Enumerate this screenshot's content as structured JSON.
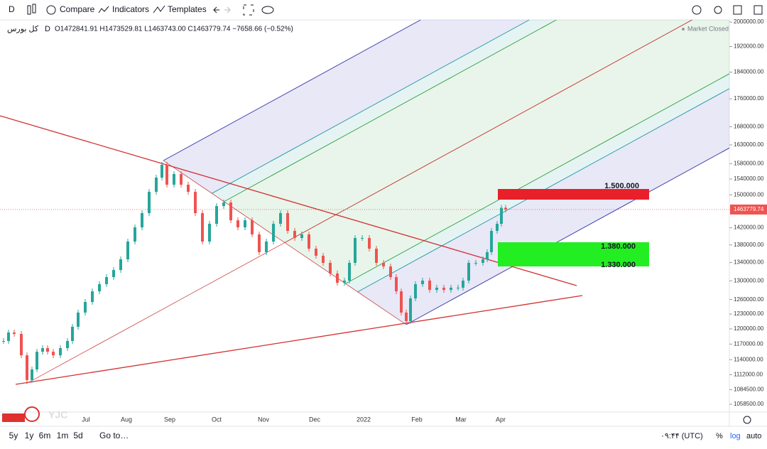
{
  "toolbar": {
    "interval": "D",
    "compare": "Compare",
    "indicators": "Indicators",
    "templates": "Templates"
  },
  "header": {
    "symbol": "کل بورس",
    "interval": "D",
    "ohlc": "O1472841.91 H1473529.81 L1463743.00 C1463779.74 −7658.66 (−0.52%)",
    "status": "Market Closed"
  },
  "chart": {
    "type": "candlestick",
    "log_scale": true,
    "closes": [
      1176000,
      1192800,
      1190000,
      1148400,
      1102000,
      1121600,
      1155200,
      1162200,
      1155200,
      1148400,
      1162200,
      1176000,
      1204200,
      1233000,
      1255000,
      1277400,
      1292800,
      1308000,
      1323600,
      1347400,
      1387800,
      1421000,
      1455000,
      1507600,
      1543600,
      1577000,
      1525600,
      1552800,
      1525600,
      1507600,
      1455000,
      1387800,
      1429400,
      1472200,
      1481000,
      1437800,
      1421000,
      1437800,
      1404400,
      1363400,
      1387800,
      1429400,
      1455000,
      1412600,
      1396000,
      1404400,
      1371400,
      1355400,
      1339400,
      1315800,
      1295800,
      1300400,
      1339400,
      1396000,
      1396000,
      1371400,
      1339400,
      1331400,
      1308000,
      1277400,
      1233000,
      1215600,
      1262400,
      1292800,
      1300400,
      1280400,
      1285200,
      1280400,
      1285200,
      1285200,
      1300400,
      1339400,
      1339400,
      1347400,
      1363400,
      1412600,
      1429400,
      1468000,
      1463779.74
    ],
    "current_price": 1463779.74,
    "ylim": [
      1047300,
      2007100
    ],
    "yticks": [
      {
        "value": 2000000,
        "label": "2000000.00"
      },
      {
        "value": 1920000,
        "label": "1920000.00"
      },
      {
        "value": 1840000,
        "label": "1840000.00"
      },
      {
        "value": 1760000,
        "label": "1760000.00"
      },
      {
        "value": 1680000,
        "label": "1680000.00"
      },
      {
        "value": 1630000,
        "label": "1630000.00"
      },
      {
        "value": 1580000,
        "label": "1580000.00"
      },
      {
        "value": 1540000,
        "label": "1540000.00"
      },
      {
        "value": 1500000,
        "label": "1500000.00"
      },
      {
        "value": 1420000,
        "label": "1420000.00"
      },
      {
        "value": 1380000,
        "label": "1380000.00"
      },
      {
        "value": 1340000,
        "label": "1340000.00"
      },
      {
        "value": 1300000,
        "label": "1300000.00"
      },
      {
        "value": 1260000,
        "label": "1260000.00"
      },
      {
        "value": 1230000,
        "label": "1230000.00"
      },
      {
        "value": 1200000,
        "label": "1200000.00"
      },
      {
        "value": 1170000,
        "label": "1170000.00"
      },
      {
        "value": 1140000,
        "label": "1140000.00"
      },
      {
        "value": 1112000,
        "label": "1112000.00"
      },
      {
        "value": 1084500,
        "label": "1084500.00"
      },
      {
        "value": 1058500,
        "label": "1058500.00"
      }
    ],
    "time_labels": [
      "Jul",
      "Aug",
      "Sep",
      "Oct",
      "Nov",
      "Dec",
      "2022",
      "Feb",
      "Mar",
      "Apr"
    ]
  },
  "annotations": {
    "resistance": "1.500.000",
    "support_top": "1.380.000",
    "support_bottom": "1.330.000",
    "watermark": "YJC"
  },
  "bottom_bar": {
    "ranges": [
      "5y",
      "1y",
      "6m",
      "1m",
      "5d"
    ],
    "goto": "Go to…",
    "time": "۰۹:۴۴ (UTC)",
    "percent": "%",
    "log": "log",
    "auto": "auto"
  }
}
